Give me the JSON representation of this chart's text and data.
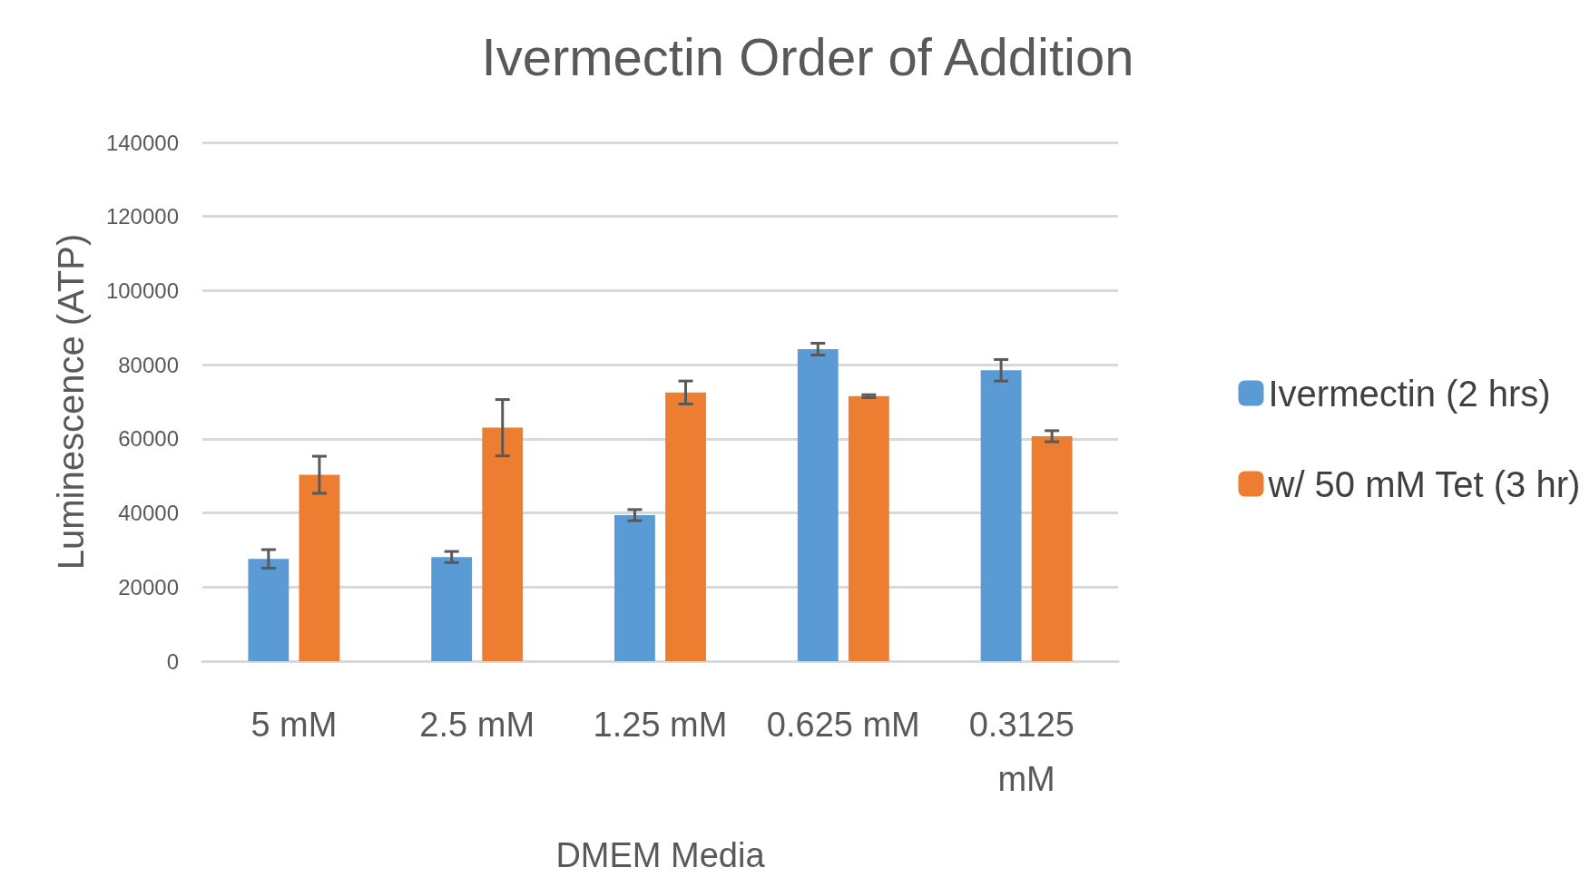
{
  "chart_data": {
    "type": "bar",
    "title": "Ivermectin Order of Addition",
    "xlabel": "DMEM Media",
    "ylabel": "Luminescence (ATP)",
    "categories": [
      "5 mM",
      "2.5 mM",
      "1.25 mM",
      "0.625 mM",
      "0.3125 mM"
    ],
    "series": [
      {
        "name": "Ivermectin (2 hrs)",
        "color": "#5b9bd5",
        "values": [
          27600,
          28100,
          39400,
          84200,
          78500
        ],
        "errors": [
          2500,
          1500,
          1500,
          1600,
          2900
        ]
      },
      {
        "name": "w/ 50 mM Tet (3 hr)",
        "color": "#ed7d31",
        "values": [
          50300,
          63000,
          72500,
          71500,
          60700
        ],
        "errors": [
          5000,
          7600,
          3100,
          400,
          1500
        ]
      }
    ],
    "ylim": [
      0,
      140000
    ],
    "yticks": [
      0,
      20000,
      40000,
      60000,
      80000,
      100000,
      120000,
      140000
    ],
    "grid": "y",
    "legend": "right"
  }
}
